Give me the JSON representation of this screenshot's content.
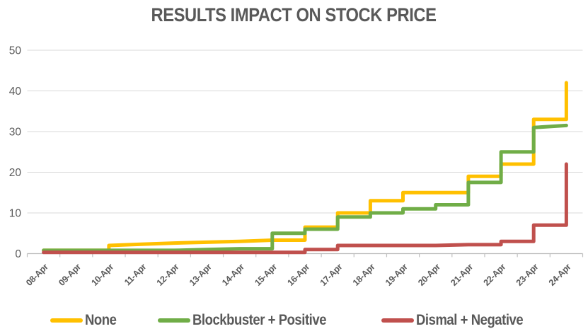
{
  "page": {
    "background": "#FFFFFF"
  },
  "chart_data": {
    "type": "line",
    "title": "RESULTS IMPACT ON STOCK PRICE",
    "title_color": "#595959",
    "categories": [
      "08-Apr",
      "09-Apr",
      "10-Apr",
      "11-Apr",
      "12-Apr",
      "13-Apr",
      "14-Apr",
      "15-Apr",
      "16-Apr",
      "17-Apr",
      "18-Apr",
      "19-Apr",
      "20-Apr",
      "21-Apr",
      "22-Apr",
      "23-Apr",
      "24-Apr"
    ],
    "series": [
      {
        "name": "None",
        "color": "#FFC000",
        "values": [
          0.8,
          0.8,
          2,
          2.3,
          2.6,
          2.8,
          3,
          3.3,
          6.5,
          10,
          13,
          15,
          15,
          19,
          22,
          33,
          42
        ]
      },
      {
        "name": "Blockbuster + Positive",
        "color": "#70AD47",
        "values": [
          0.8,
          0.8,
          0.8,
          0.8,
          0.8,
          1,
          1.2,
          5,
          6,
          9,
          10,
          11,
          12,
          17.5,
          25,
          31,
          31.5
        ]
      },
      {
        "name": "Dismal + Negative",
        "color": "#C0504D",
        "values": [
          0.3,
          0.3,
          0.3,
          0.3,
          0.3,
          0.3,
          0.3,
          0.3,
          1,
          2,
          2,
          2,
          2,
          2.2,
          3,
          7,
          22
        ]
      }
    ],
    "ylim": [
      0,
      50
    ],
    "yticks": [
      0,
      10,
      20,
      30,
      40,
      50
    ],
    "xlabel": "",
    "ylabel": "",
    "grid": "horizontal",
    "gridline_color": "#D9D9D9",
    "axis_line_color": "#BFBFBF",
    "axis_text_color": "#595959",
    "legend_position": "bottom",
    "line_style": "cumulative steps, jumps at category centers"
  }
}
